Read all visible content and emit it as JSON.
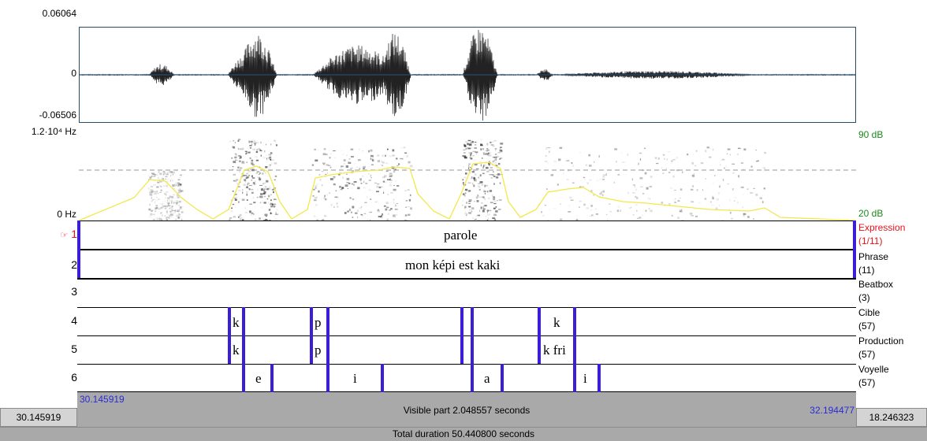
{
  "waveform": {
    "max_label": "0.06064",
    "zero_label": "0",
    "min_label": "-0.06506"
  },
  "spectrogram": {
    "max_freq_label": "1.2·10⁴ Hz",
    "min_freq_label": "0 Hz",
    "max_db_label": "90 dB",
    "min_db_label": "20 dB",
    "db_color": "#1a8a1a"
  },
  "tiers": [
    {
      "number": "1",
      "pointer": "☞",
      "name": "Expression",
      "count": "(1/11)",
      "texts": [
        "parole"
      ]
    },
    {
      "number": "2",
      "name": "Phrase",
      "count": "(11)",
      "texts": [
        "mon képi est kaki"
      ]
    },
    {
      "number": "3",
      "name": "Beatbox",
      "count": "(3)",
      "texts": []
    },
    {
      "number": "4",
      "name": "Cible",
      "count": "(57)",
      "texts": [
        "k",
        "p",
        "k"
      ]
    },
    {
      "number": "5",
      "name": "Production",
      "count": "(57)",
      "texts": [
        "k",
        "p",
        "k fri"
      ]
    },
    {
      "number": "6",
      "name": "Voyelle",
      "count": "(57)",
      "texts": [
        "e",
        "i",
        "a",
        "i"
      ]
    }
  ],
  "selected_color": "#e8121a",
  "boundary_color": "#3a1fd6",
  "time": {
    "window_start": "30.145919",
    "window_end": "32.194477",
    "visible_part": "Visible part 2.048557 seconds",
    "left_box": "30.145919",
    "right_box": "18.246323",
    "total_duration": "Total duration 50.440800 seconds"
  }
}
